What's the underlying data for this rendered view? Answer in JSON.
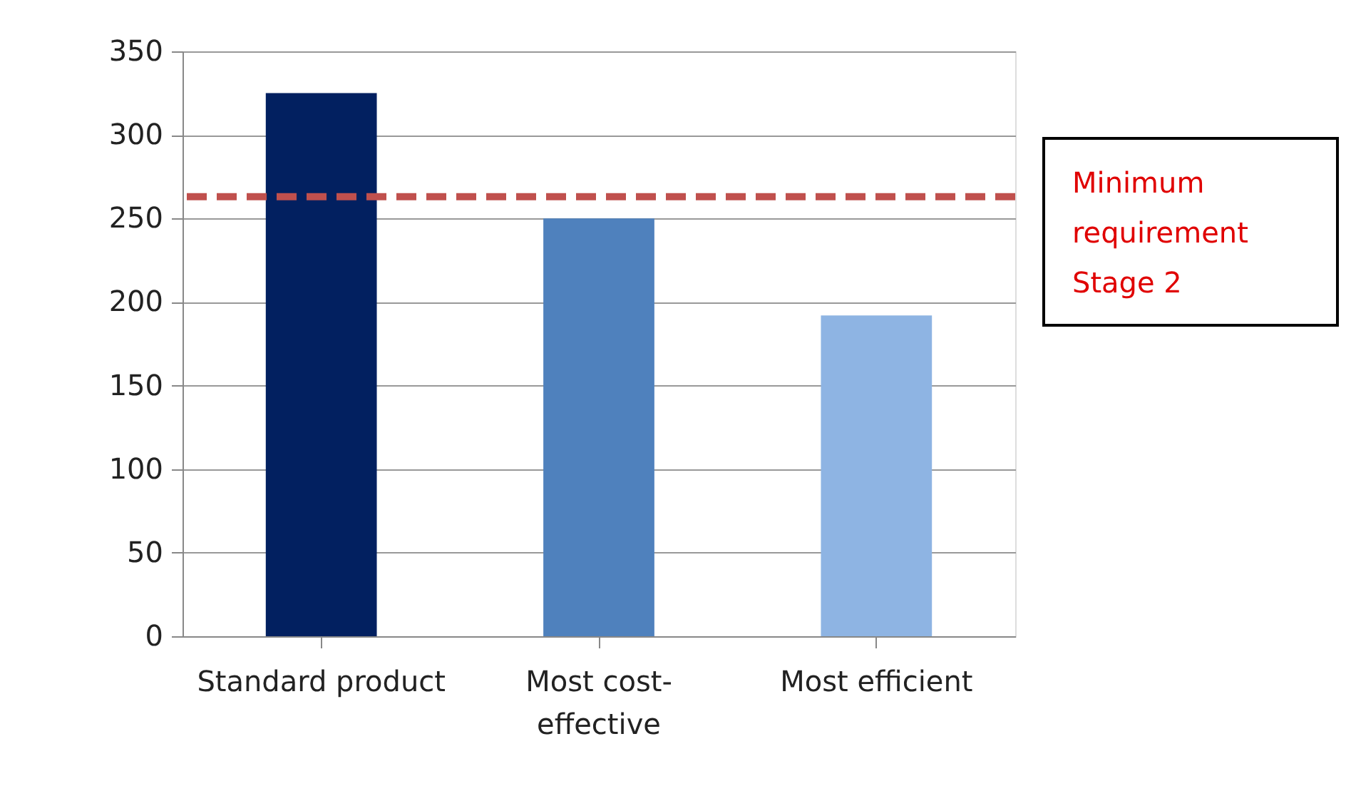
{
  "chart_data": {
    "type": "bar",
    "categories": [
      "Standard product",
      "Most cost-effective",
      "Most efficient"
    ],
    "values": [
      325,
      250,
      192
    ],
    "colors": [
      "#022060",
      "#4f81bd",
      "#8eb4e3"
    ],
    "ylim": [
      0,
      350
    ],
    "yticks": [
      0,
      50,
      100,
      150,
      200,
      250,
      300,
      350
    ],
    "grid": "y",
    "legend": false,
    "ref_lines": [
      {
        "axis": "y",
        "value": 263,
        "label": "Minimum requirement Stage 2",
        "color": "#c0504d",
        "line_style": "dashed"
      }
    ]
  }
}
